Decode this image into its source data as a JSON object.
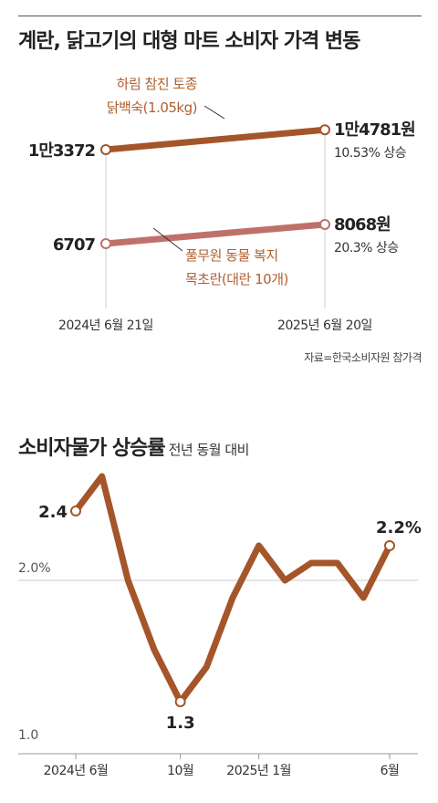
{
  "chart1": {
    "title": "계란, 닭고기의 대형 마트 소비자 가격 변동",
    "source": "자료=한국소비자원 참가격",
    "x_labels": [
      "2024년 6월 21일",
      "2025년 6월 20일"
    ],
    "colors": {
      "series1": "#a5552a",
      "series2": "#c0706a",
      "axis": "#cccccc",
      "text": "#222222",
      "accent": "#b0602f"
    }
  },
  "chart2": {
    "title": "소비자물가 상승률",
    "subtitle": "전년 동월 대비",
    "x_labels": [
      "2024년 6월",
      "10월",
      "2025년 1월",
      "6월"
    ],
    "y_ref_labels": [
      "2.0%",
      "1.0"
    ],
    "point_labels": {
      "first": "2.4",
      "min": "1.3",
      "last": "2.2%"
    },
    "colors": {
      "line": "#a5552a",
      "grid": "#cccccc"
    }
  },
  "chart_data": [
    {
      "type": "line",
      "title": "계란, 닭고기의 대형 마트 소비자 가격 변동",
      "categories": [
        "2024년 6월 21일",
        "2025년 6월 20일"
      ],
      "series": [
        {
          "name": "하림 참진 토종 닭백숙(1.05kg)",
          "label_lines": [
            "하림 참진 토종",
            "닭백숙(1.05kg)"
          ],
          "values": [
            13372,
            14781
          ],
          "value_labels": [
            "1만3372",
            "1만4781원"
          ],
          "change": "10.53% 상승"
        },
        {
          "name": "풀무원 동물 복지 목초란(대란 10개)",
          "label_lines": [
            "풀무원 동물 복지",
            "목초란(대란 10개)"
          ],
          "values": [
            6707,
            8068
          ],
          "value_labels": [
            "6707",
            "8068원"
          ],
          "change": "20.3% 상승"
        }
      ]
    },
    {
      "type": "line",
      "title": "소비자물가 상승률",
      "subtitle": "전년 동월 대비",
      "x": [
        "2024-06",
        "2024-07",
        "2024-08",
        "2024-09",
        "2024-10",
        "2024-11",
        "2024-12",
        "2025-01",
        "2025-02",
        "2025-03",
        "2025-04",
        "2025-05",
        "2025-06"
      ],
      "values": [
        2.4,
        2.6,
        2.0,
        1.6,
        1.3,
        1.5,
        1.9,
        2.2,
        2.0,
        2.1,
        2.1,
        1.9,
        2.2
      ],
      "ylim": [
        1.0,
        2.6
      ],
      "grid": false
    }
  ]
}
